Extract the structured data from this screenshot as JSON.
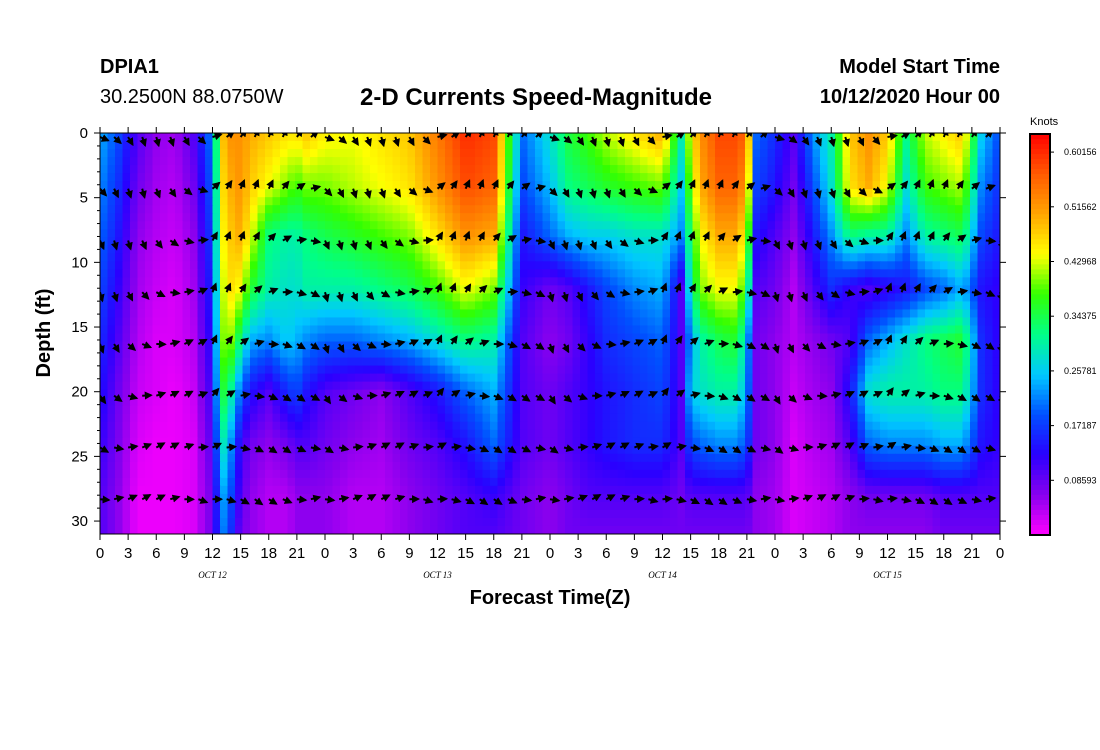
{
  "header": {
    "station_id": "DPIA1",
    "coordinates": "30.2500N 88.0750W",
    "title": "2-D Currents Speed-Magnitude",
    "start_label": "Model Start Time",
    "start_value": "10/12/2020 Hour 00"
  },
  "chart_data": {
    "type": "heatmap",
    "title": "2-D Currents Speed-Magnitude",
    "xlabel": "Forecast Time(Z)",
    "ylabel": "Depth (ft)",
    "x_tick_labels": [
      "0",
      "3",
      "6",
      "9",
      "12",
      "15",
      "18",
      "21",
      "0",
      "3",
      "6",
      "9",
      "12",
      "15",
      "18",
      "21",
      "0",
      "3",
      "6",
      "9",
      "12",
      "15",
      "18",
      "21",
      "0",
      "3",
      "6",
      "9",
      "12",
      "15",
      "18",
      "21",
      "0"
    ],
    "x_range_hours": [
      0,
      96
    ],
    "day_labels": [
      {
        "label": "OCT 12",
        "hour": 12
      },
      {
        "label": "OCT 13",
        "hour": 36
      },
      {
        "label": "OCT 14",
        "hour": 60
      },
      {
        "label": "OCT 15",
        "hour": 84
      }
    ],
    "y_ticks": [
      0,
      5,
      10,
      15,
      20,
      25,
      30
    ],
    "y_range": [
      0,
      31
    ],
    "y_inverted": true,
    "colorbar": {
      "unit": "Knots",
      "min": 0.0,
      "max": 0.63,
      "tick_values": [
        0.60156,
        0.51562,
        0.42968,
        0.34375,
        0.25781,
        0.17187,
        0.08593
      ],
      "tick_labels": [
        "0.60156",
        "0.51562",
        "0.42968",
        "0.34375",
        "0.25781",
        "0.17187",
        "0.08593"
      ],
      "colors": [
        "#ff00ff",
        "#8800ee",
        "#2a00ff",
        "#0050ff",
        "#00c8ff",
        "#00ff88",
        "#33ff00",
        "#ffff00",
        "#ffa500",
        "#ff5a00",
        "#ff0000"
      ]
    },
    "vector_depths": [
      0,
      4,
      8,
      12,
      16,
      20,
      24,
      28
    ],
    "speed_samples": {
      "hours": [
        0,
        2,
        4,
        6,
        8,
        10,
        12,
        13,
        14,
        15,
        16,
        18,
        20,
        21,
        22,
        24,
        27,
        30,
        33,
        36,
        39,
        42,
        45,
        48,
        50,
        52,
        54,
        57,
        60,
        62,
        63,
        64,
        66,
        68,
        69,
        70,
        72,
        74,
        76,
        78,
        80,
        82,
        84,
        86,
        88,
        90,
        92,
        94,
        96
      ],
      "depths": [
        0,
        4,
        8,
        12,
        16,
        20,
        24,
        28,
        31
      ],
      "values": [
        [
          0.24,
          0.18,
          0.1,
          0.06,
          0.05,
          0.1,
          0.22,
          0.48,
          0.52,
          0.52,
          0.5,
          0.48,
          0.46,
          0.46,
          0.48,
          0.45,
          0.44,
          0.46,
          0.48,
          0.54,
          0.6,
          0.58,
          0.2,
          0.28,
          0.35,
          0.38,
          0.42,
          0.46,
          0.5,
          0.3,
          0.44,
          0.52,
          0.58,
          0.58,
          0.55,
          0.2,
          0.16,
          0.1,
          0.22,
          0.3,
          0.48,
          0.52,
          0.48,
          0.32,
          0.42,
          0.45,
          0.48,
          0.26,
          0.18
        ],
        [
          0.22,
          0.16,
          0.08,
          0.05,
          0.04,
          0.08,
          0.2,
          0.46,
          0.5,
          0.52,
          0.48,
          0.44,
          0.4,
          0.38,
          0.4,
          0.4,
          0.42,
          0.44,
          0.46,
          0.52,
          0.58,
          0.56,
          0.18,
          0.25,
          0.32,
          0.34,
          0.36,
          0.38,
          0.4,
          0.26,
          0.4,
          0.5,
          0.56,
          0.56,
          0.5,
          0.18,
          0.14,
          0.08,
          0.18,
          0.28,
          0.46,
          0.5,
          0.44,
          0.28,
          0.38,
          0.4,
          0.42,
          0.22,
          0.16
        ],
        [
          0.2,
          0.14,
          0.06,
          0.04,
          0.03,
          0.06,
          0.18,
          0.44,
          0.48,
          0.5,
          0.44,
          0.32,
          0.3,
          0.3,
          0.32,
          0.34,
          0.36,
          0.38,
          0.4,
          0.46,
          0.52,
          0.5,
          0.14,
          0.2,
          0.24,
          0.26,
          0.26,
          0.28,
          0.28,
          0.22,
          0.34,
          0.44,
          0.5,
          0.5,
          0.42,
          0.14,
          0.1,
          0.06,
          0.14,
          0.22,
          0.32,
          0.3,
          0.3,
          0.22,
          0.3,
          0.32,
          0.34,
          0.18,
          0.14
        ],
        [
          0.18,
          0.12,
          0.05,
          0.03,
          0.02,
          0.05,
          0.16,
          0.42,
          0.46,
          0.44,
          0.36,
          0.3,
          0.28,
          0.28,
          0.3,
          0.3,
          0.3,
          0.32,
          0.34,
          0.38,
          0.44,
          0.4,
          0.12,
          0.08,
          0.1,
          0.14,
          0.18,
          0.22,
          0.24,
          0.1,
          0.3,
          0.4,
          0.44,
          0.44,
          0.34,
          0.1,
          0.08,
          0.04,
          0.1,
          0.16,
          0.12,
          0.1,
          0.12,
          0.14,
          0.18,
          0.2,
          0.24,
          0.14,
          0.12
        ],
        [
          0.16,
          0.1,
          0.04,
          0.02,
          0.02,
          0.04,
          0.14,
          0.4,
          0.4,
          0.32,
          0.24,
          0.22,
          0.26,
          0.24,
          0.22,
          0.2,
          0.2,
          0.22,
          0.24,
          0.28,
          0.32,
          0.3,
          0.1,
          0.06,
          0.08,
          0.12,
          0.16,
          0.18,
          0.2,
          0.1,
          0.22,
          0.3,
          0.34,
          0.36,
          0.24,
          0.08,
          0.06,
          0.04,
          0.06,
          0.08,
          0.1,
          0.2,
          0.24,
          0.28,
          0.32,
          0.34,
          0.36,
          0.16,
          0.12
        ],
        [
          0.14,
          0.08,
          0.03,
          0.02,
          0.01,
          0.03,
          0.12,
          0.36,
          0.3,
          0.2,
          0.14,
          0.1,
          0.16,
          0.18,
          0.14,
          0.1,
          0.08,
          0.06,
          0.1,
          0.14,
          0.2,
          0.24,
          0.1,
          0.08,
          0.1,
          0.12,
          0.14,
          0.16,
          0.18,
          0.1,
          0.26,
          0.28,
          0.3,
          0.3,
          0.22,
          0.08,
          0.06,
          0.03,
          0.05,
          0.06,
          0.14,
          0.28,
          0.3,
          0.3,
          0.3,
          0.32,
          0.32,
          0.16,
          0.12
        ],
        [
          0.12,
          0.07,
          0.02,
          0.01,
          0.01,
          0.02,
          0.1,
          0.3,
          0.22,
          0.12,
          0.08,
          0.06,
          0.08,
          0.1,
          0.1,
          0.08,
          0.06,
          0.05,
          0.08,
          0.1,
          0.14,
          0.2,
          0.1,
          0.08,
          0.1,
          0.12,
          0.14,
          0.16,
          0.16,
          0.1,
          0.18,
          0.2,
          0.22,
          0.22,
          0.18,
          0.08,
          0.06,
          0.02,
          0.04,
          0.05,
          0.1,
          0.2,
          0.22,
          0.22,
          0.22,
          0.24,
          0.24,
          0.14,
          0.12
        ],
        [
          0.1,
          0.06,
          0.01,
          0.01,
          0.01,
          0.02,
          0.08,
          0.24,
          0.18,
          0.1,
          0.06,
          0.04,
          0.04,
          0.06,
          0.06,
          0.06,
          0.04,
          0.04,
          0.06,
          0.08,
          0.1,
          0.12,
          0.08,
          0.06,
          0.08,
          0.1,
          0.1,
          0.1,
          0.1,
          0.08,
          0.1,
          0.1,
          0.1,
          0.1,
          0.1,
          0.06,
          0.05,
          0.02,
          0.03,
          0.04,
          0.06,
          0.08,
          0.08,
          0.08,
          0.08,
          0.1,
          0.1,
          0.1,
          0.1
        ],
        [
          0.1,
          0.06,
          0.01,
          0.01,
          0.01,
          0.02,
          0.08,
          0.22,
          0.16,
          0.08,
          0.06,
          0.04,
          0.04,
          0.06,
          0.06,
          0.06,
          0.04,
          0.04,
          0.06,
          0.08,
          0.1,
          0.1,
          0.08,
          0.06,
          0.08,
          0.08,
          0.08,
          0.08,
          0.08,
          0.08,
          0.08,
          0.08,
          0.08,
          0.08,
          0.08,
          0.06,
          0.05,
          0.02,
          0.03,
          0.04,
          0.06,
          0.06,
          0.06,
          0.06,
          0.06,
          0.08,
          0.08,
          0.08,
          0.08
        ]
      ]
    }
  }
}
